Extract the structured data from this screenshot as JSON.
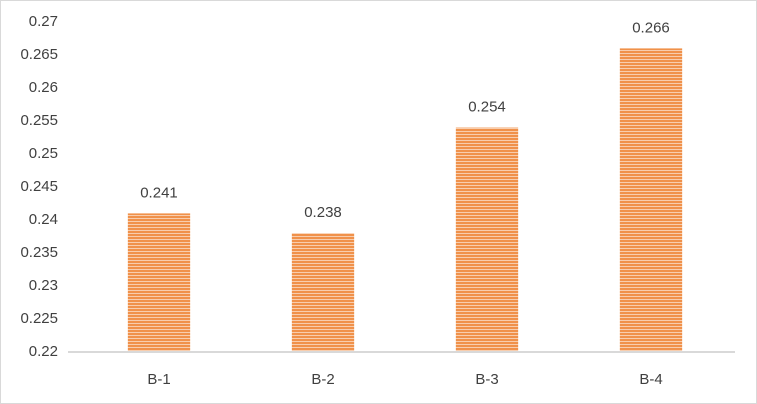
{
  "chart_data": {
    "type": "bar",
    "categories": [
      "B-1",
      "B-2",
      "B-3",
      "B-4"
    ],
    "values": [
      0.241,
      0.238,
      0.254,
      0.266
    ],
    "color": "#f0914a",
    "ylim": [
      0.22,
      0.27
    ],
    "yticks": [
      0.22,
      0.225,
      0.23,
      0.235,
      0.24,
      0.245,
      0.25,
      0.255,
      0.26,
      0.265,
      0.27
    ],
    "grid": false
  }
}
